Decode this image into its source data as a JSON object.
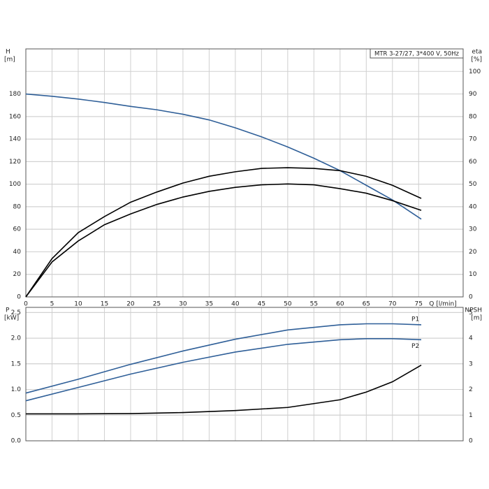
{
  "chart_data": [
    {
      "type": "line",
      "title": "MTR 3-27/27, 3*400 V, 50Hz",
      "ylabel": "H",
      "yunit": "[m]",
      "y2label": "eta",
      "y2unit": "[%]",
      "xlabel": "Q [l/min]",
      "x": [
        0,
        5,
        10,
        15,
        20,
        25,
        30,
        35,
        40,
        45,
        50,
        55,
        60,
        65,
        70,
        75.5
      ],
      "xlim": [
        0,
        83.5
      ],
      "xticks": [
        0,
        5,
        10,
        15,
        20,
        25,
        30,
        35,
        40,
        45,
        50,
        55,
        60,
        65,
        70,
        75
      ],
      "ylim": [
        0,
        220
      ],
      "yticks": [
        0,
        20,
        40,
        60,
        80,
        100,
        120,
        140,
        160,
        180
      ],
      "y2lim": [
        0,
        110
      ],
      "y2ticks": [
        0,
        10,
        20,
        30,
        40,
        50,
        60,
        70,
        80,
        90,
        100
      ],
      "grid": true,
      "series": [
        {
          "color": "#2f5f98",
          "values": [
            180,
            178,
            175.5,
            172.5,
            169,
            166,
            162,
            157,
            150,
            142,
            133,
            123,
            112,
            99,
            86,
            69
          ]
        },
        {
          "color": "#000000",
          "axis": "y2",
          "values": [
            0,
            17,
            28.5,
            35.6,
            42,
            46.5,
            50.5,
            53.5,
            55.5,
            57,
            57.3,
            57,
            56,
            53.5,
            49.5,
            43.7
          ]
        },
        {
          "color": "#000000",
          "axis": "y2",
          "values": [
            0,
            15.5,
            24.8,
            32,
            36.8,
            41,
            44.3,
            46.8,
            48.6,
            49.7,
            50.1,
            49.7,
            48,
            46,
            42.7,
            38.4
          ]
        }
      ]
    },
    {
      "type": "line",
      "ylabel": "P",
      "yunit": "[kW]",
      "y2label": "NPSH",
      "y2unit": "[m]",
      "x": [
        0,
        10,
        20,
        30,
        40,
        50,
        60,
        65,
        70,
        75.5
      ],
      "xlim": [
        0,
        83.5
      ],
      "xticks": [
        0,
        5,
        10,
        15,
        20,
        25,
        30,
        35,
        40,
        45,
        50,
        55,
        60,
        65,
        70,
        75
      ],
      "ylim": [
        0,
        2.6
      ],
      "yticks": [
        {
          "value": 0,
          "label": "0.0"
        },
        0.5,
        {
          "value": 1,
          "label": "1.0"
        },
        1.5,
        {
          "value": 2,
          "label": "2.0"
        },
        2.5
      ],
      "y2lim": [
        0,
        5.2
      ],
      "y2ticks": [
        0,
        1,
        2,
        3,
        4,
        5
      ],
      "grid": true,
      "series": [
        {
          "name": "P1",
          "color": "#2f5f98",
          "values": [
            0.93,
            1.2,
            1.49,
            1.75,
            1.98,
            2.16,
            2.26,
            2.28,
            2.28,
            2.26
          ]
        },
        {
          "name": "P2",
          "color": "#2f5f98",
          "values": [
            0.78,
            1.04,
            1.3,
            1.53,
            1.73,
            1.88,
            1.97,
            1.99,
            1.99,
            1.97
          ]
        },
        {
          "color": "#000000",
          "axis": "y2",
          "values": [
            1.05,
            1.05,
            1.06,
            1.1,
            1.18,
            1.3,
            1.6,
            1.9,
            2.3,
            2.95
          ]
        }
      ]
    }
  ]
}
